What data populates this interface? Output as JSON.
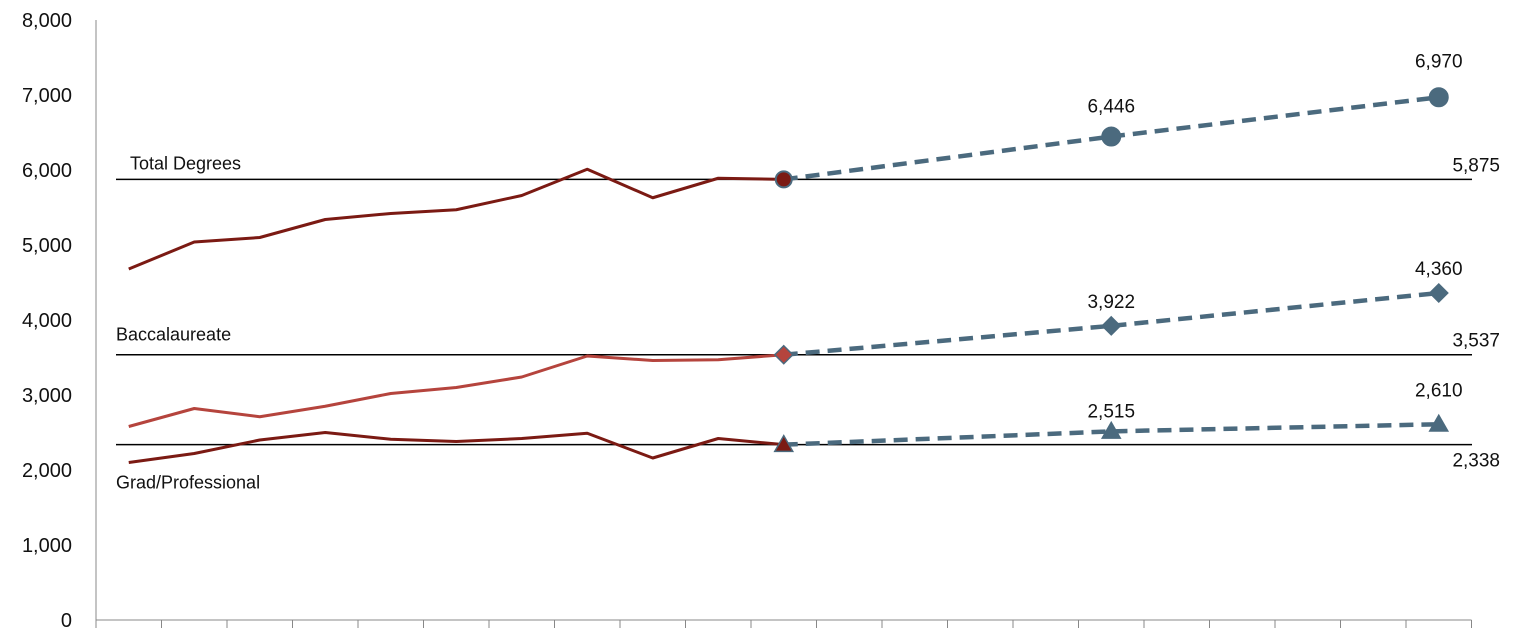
{
  "chart_data": {
    "type": "line",
    "title": "",
    "xlabel": "",
    "ylabel": "",
    "ylim": [
      0,
      8000
    ],
    "y_ticks": [
      "0",
      "1,000",
      "2,000",
      "3,000",
      "4,000",
      "5,000",
      "6,000",
      "7,000",
      "8,000"
    ],
    "x_categories_count": 21,
    "grid": false,
    "series": [
      {
        "label": "Total Degrees",
        "color_actual": "#7B1A13",
        "color_projection": "#4B6A7E",
        "marker": "circle",
        "actual_x": [
          0,
          1,
          2,
          3,
          4,
          5,
          6,
          7,
          8,
          9,
          10
        ],
        "actual_y": [
          4680,
          5040,
          5100,
          5340,
          5420,
          5470,
          5660,
          6010,
          5630,
          5890,
          5875
        ],
        "projection_x": [
          10,
          15,
          20
        ],
        "projection_y": [
          5875,
          6446,
          6970
        ],
        "reference": 5875,
        "reference_label": "5,875",
        "projection_labels": [
          "6,446",
          "6,970"
        ]
      },
      {
        "label": "Baccalaureate",
        "color_actual": "#B5443D",
        "color_projection": "#4B6A7E",
        "marker": "diamond",
        "actual_x": [
          0,
          1,
          2,
          3,
          4,
          5,
          6,
          7,
          8,
          9,
          10
        ],
        "actual_y": [
          2580,
          2820,
          2710,
          2850,
          3020,
          3100,
          3240,
          3520,
          3460,
          3470,
          3537
        ],
        "projection_x": [
          10,
          15,
          20
        ],
        "projection_y": [
          3537,
          3922,
          4360
        ],
        "reference": 3537,
        "reference_label": "3,537",
        "projection_labels": [
          "3,922",
          "4,360"
        ]
      },
      {
        "label": "Grad/Professional",
        "color_actual": "#7B1A13",
        "color_projection": "#4B6A7E",
        "marker": "triangle",
        "actual_x": [
          0,
          1,
          2,
          3,
          4,
          5,
          6,
          7,
          8,
          9,
          10
        ],
        "actual_y": [
          2100,
          2220,
          2400,
          2500,
          2410,
          2380,
          2420,
          2490,
          2160,
          2420,
          2338
        ],
        "projection_x": [
          10,
          15,
          20
        ],
        "projection_y": [
          2338,
          2515,
          2610
        ],
        "reference": 2338,
        "reference_label": "2,338",
        "projection_labels": [
          "2,515",
          "2,610"
        ]
      }
    ]
  }
}
